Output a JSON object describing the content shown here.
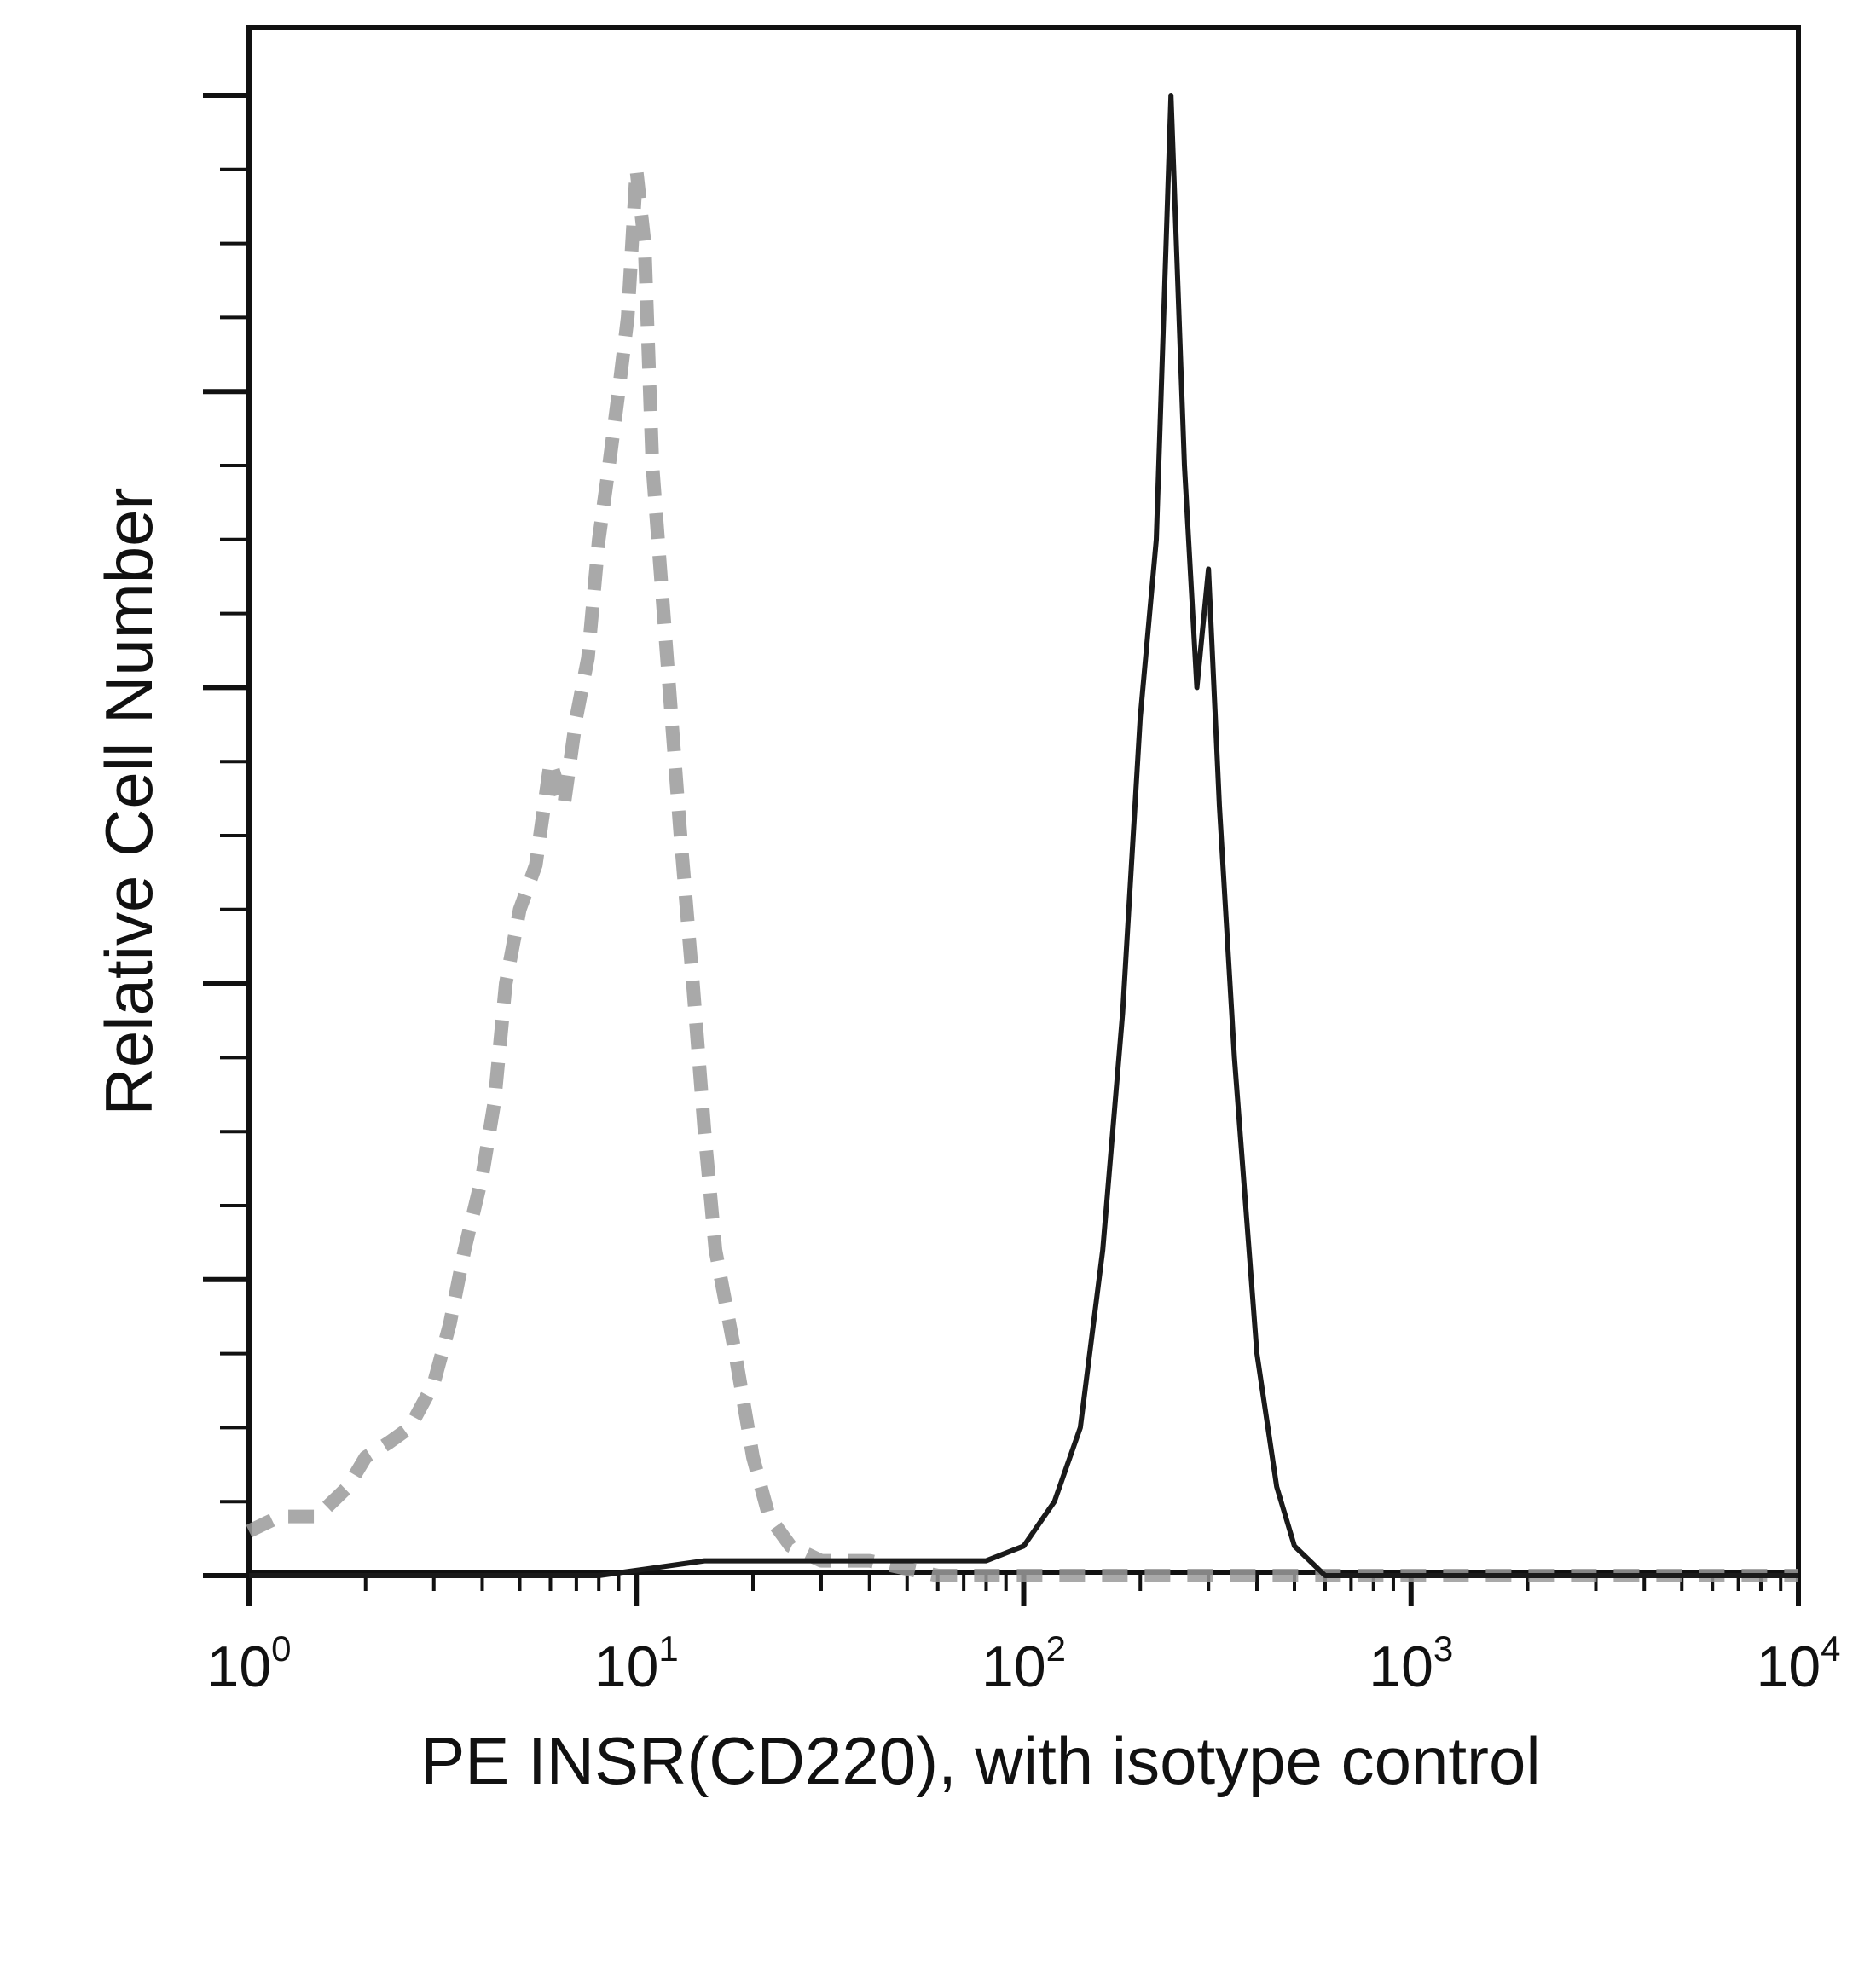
{
  "chart_data": {
    "type": "line",
    "title": "",
    "xlabel": "PE INSR(CD220), with isotype control",
    "ylabel": "Relative Cell Number",
    "x_scale": "log10",
    "xlim": [
      1,
      10000
    ],
    "ylim": [
      0,
      100
    ],
    "x_ticks": [
      {
        "base": "10",
        "exp": "0"
      },
      {
        "base": "10",
        "exp": "1"
      },
      {
        "base": "10",
        "exp": "2"
      },
      {
        "base": "10",
        "exp": "3"
      },
      {
        "base": "10",
        "exp": "4"
      }
    ],
    "grid": false,
    "legend": "none",
    "series": [
      {
        "color": "#9a9a9a",
        "style": "dashed",
        "x": [
          1.0,
          1.2,
          1.5,
          1.8,
          2.0,
          2.3,
          2.6,
          3.0,
          3.3,
          3.6,
          4.0,
          4.3,
          4.6,
          5.0,
          5.5,
          6.0,
          6.5,
          7.0,
          7.5,
          8.0,
          8.5,
          9.0,
          9.5,
          10.0,
          10.5,
          11.0,
          12.0,
          13.0,
          14.0,
          15.0,
          16.0,
          18.0,
          20.0,
          22.0,
          25.0,
          30.0,
          40.0,
          60.0,
          100.0,
          10000.0
        ],
        "y": [
          3,
          4,
          4,
          6,
          8,
          9,
          10,
          13,
          17,
          22,
          27,
          32,
          40,
          45,
          48,
          55,
          52,
          58,
          62,
          70,
          75,
          80,
          85,
          95,
          90,
          75,
          62,
          50,
          40,
          30,
          22,
          15,
          8,
          4,
          2,
          1,
          1,
          0,
          0,
          0
        ]
      },
      {
        "color": "#1a1a1a",
        "style": "solid",
        "x": [
          1.0,
          8.0,
          15.0,
          25.0,
          40.0,
          60.0,
          80.0,
          100.0,
          120.0,
          140.0,
          160.0,
          180.0,
          200.0,
          220.0,
          240.0,
          260.0,
          280.0,
          300.0,
          320.0,
          350.0,
          400.0,
          450.0,
          500.0,
          600.0,
          1000.0,
          10000.0
        ],
        "y": [
          0,
          0,
          1,
          1,
          1,
          1,
          1,
          2,
          5,
          10,
          22,
          38,
          58,
          70,
          100,
          75,
          60,
          68,
          52,
          35,
          15,
          6,
          2,
          0,
          0,
          0
        ]
      }
    ]
  }
}
